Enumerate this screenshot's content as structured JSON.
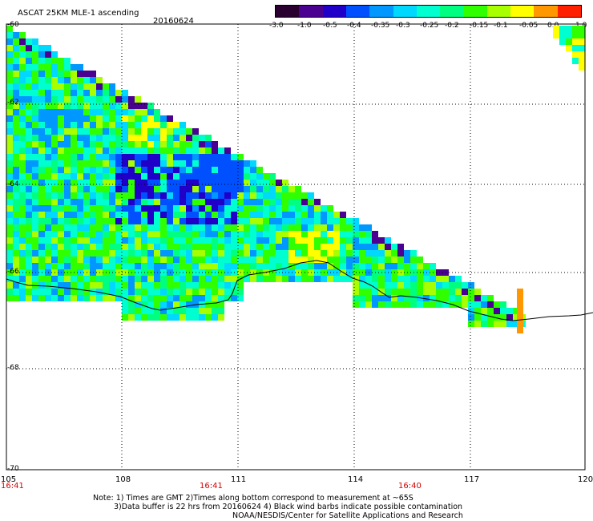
{
  "header": {
    "title": "ASCAT 25KM MLE-1 ascending",
    "date": "20160624"
  },
  "colorbar": {
    "tick_labels": [
      "-3.0",
      "-1.0",
      "-0.5",
      "-0.4",
      "-0.35",
      "-0.3",
      "-0.25",
      "-0.2",
      "-0.15",
      "-0.1",
      "-0.05",
      "0.0",
      "1.0"
    ],
    "colors": [
      "#2a0030",
      "#4a0090",
      "#2000c8",
      "#0050ff",
      "#0098ff",
      "#00d8ff",
      "#00ffd0",
      "#00ff80",
      "#30ff00",
      "#a8ff00",
      "#ffff00",
      "#ff9800",
      "#ff2000"
    ]
  },
  "axes": {
    "lat_labels": [
      "-60",
      "-62",
      "-64",
      "-66",
      "-68",
      "-70"
    ],
    "lon_labels": [
      "105",
      "108",
      "111",
      "114",
      "117",
      "120"
    ]
  },
  "times": [
    "16:41",
    "16:41",
    "16:40"
  ],
  "footnote": {
    "line1": "Note: 1) Times are GMT 2)Times along bottom correspond to measurement at ~65S",
    "line2": "3)Data buffer is 22 hrs from 20160624 4) Black wind barbs indicate possible contamination",
    "line3": "NOAA/NESDIS/Center for Satellite Applications and Research"
  },
  "style": {
    "coastline_color": "#000000",
    "grid_color": "#000000",
    "time_color": "#d40000"
  }
}
